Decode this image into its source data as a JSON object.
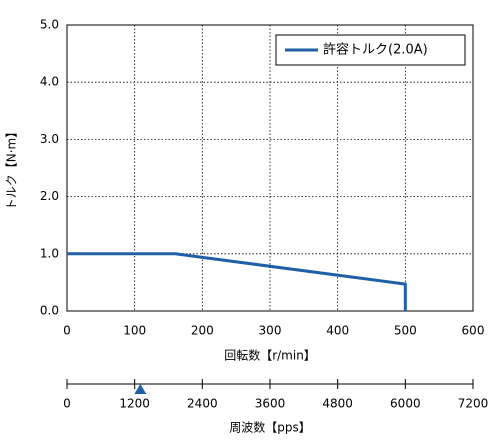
{
  "chart_data": {
    "type": "line",
    "xlabel": "回転数【r/min】",
    "ylabel": "トルク【N·m】",
    "x": [
      0,
      160,
      500,
      500
    ],
    "series": [
      {
        "name": "許容トルク(2.0A)",
        "color": "#1f5fa8",
        "values": [
          1.0,
          1.0,
          0.47,
          0
        ]
      }
    ],
    "xlim": [
      0,
      600
    ],
    "xticks": [
      0,
      100,
      200,
      300,
      400,
      500,
      600
    ],
    "ylim": [
      0,
      5
    ],
    "yticks": [
      {
        "value": 0,
        "label": "0.0"
      },
      {
        "value": 1,
        "label": "1.0"
      },
      {
        "value": 2,
        "label": "2.0"
      },
      {
        "value": 3,
        "label": "3.0"
      },
      {
        "value": 4,
        "label": "4.0"
      },
      {
        "value": 5,
        "label": "5.0"
      }
    ],
    "grid": true,
    "legend": "upper right",
    "secondary_axis": {
      "label": "周波数【pps】",
      "xlim": [
        0,
        7200
      ],
      "xticks": [
        0,
        1200,
        2400,
        3600,
        4800,
        6000,
        7200
      ],
      "marker": 1300,
      "marker_color": "#1f5fa8"
    }
  }
}
